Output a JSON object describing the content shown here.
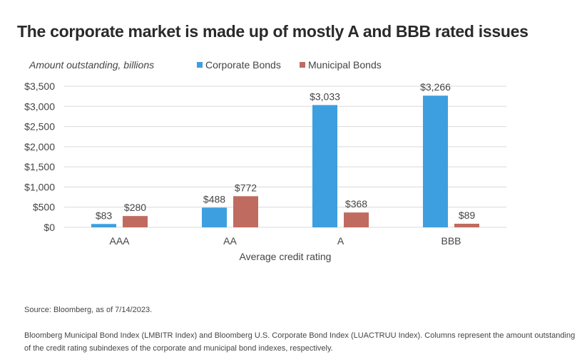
{
  "title": "The corporate market is made up of mostly A and BBB rated issues",
  "source": "Source: Bloomberg, as of 7/14/2023.",
  "note": "Bloomberg Municipal Bond Index (LMBITR Index) and Bloomberg U.S. Corporate Bond Index (LUACTRUU Index). Columns represent the amount outstanding of the credit rating subindexes of the corporate and municipal bond indexes, respectively.",
  "chart_data": {
    "type": "bar",
    "title": "The corporate market is made up of mostly A and BBB rated issues",
    "ylabel": "Amount outstanding, billions",
    "xlabel": "Average credit rating",
    "categories": [
      "AAA",
      "AA",
      "A",
      "BBB"
    ],
    "series": [
      {
        "name": "Corporate Bonds",
        "color": "#3d9fdf",
        "values": [
          83,
          488,
          3033,
          3266
        ],
        "labels": [
          "$83",
          "$488",
          "$3,033",
          "$3,266"
        ]
      },
      {
        "name": "Municipal Bonds",
        "color": "#bf6b60",
        "values": [
          280,
          772,
          368,
          89
        ],
        "labels": [
          "$280",
          "$772",
          "$368",
          "$89"
        ]
      }
    ],
    "ylim": [
      0,
      3500
    ],
    "yticks": [
      0,
      500,
      1000,
      1500,
      2000,
      2500,
      3000,
      3500
    ],
    "ytick_labels": [
      "$0",
      "$500",
      "$1,000",
      "$1,500",
      "$2,000",
      "$2,500",
      "$3,000",
      "$3,500"
    ],
    "grid": true,
    "legend": "top"
  }
}
